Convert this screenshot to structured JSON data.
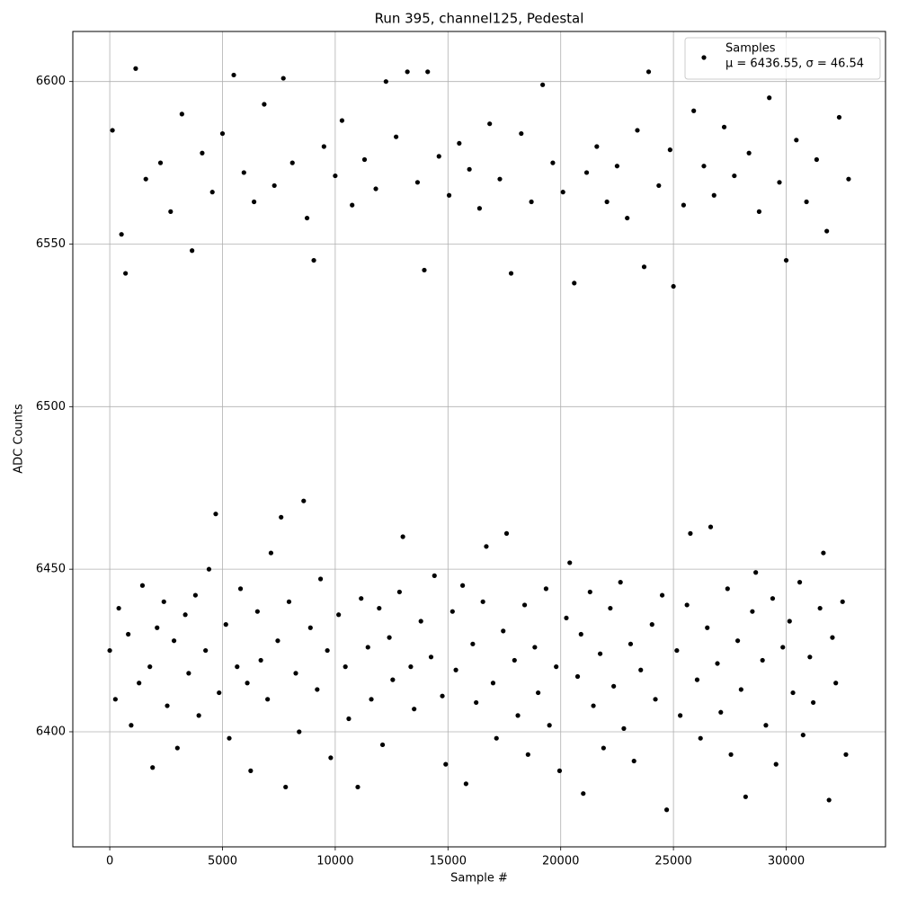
{
  "chart_data": {
    "type": "scatter",
    "title": "Run 395, channel125, Pedestal",
    "x_label": "Sample #",
    "y_label": "ADC Counts",
    "legend_note": "μ = 6436.55, σ = 46.54",
    "legend": "upper right",
    "grid": true,
    "xlim": [
      -1638,
      34405
    ],
    "ylim": [
      6364.6,
      6615.4
    ],
    "xticks": [
      0,
      5000,
      10000,
      15000,
      20000,
      25000,
      30000
    ],
    "yticks": [
      6400,
      6450,
      6500,
      6550,
      6600
    ],
    "x": [
      0,
      120,
      250,
      400,
      520,
      700,
      820,
      950,
      1150,
      1300,
      1450,
      1600,
      1780,
      1900,
      2100,
      2250,
      2400,
      2550,
      2700,
      2850,
      3000,
      3200,
      3350,
      3500,
      3650,
      3800,
      3950,
      4100,
      4250,
      4400,
      4550,
      4700,
      4850,
      5000,
      5150,
      5300,
      5500,
      5650,
      5800,
      5950,
      6100,
      6250,
      6400,
      6550,
      6700,
      6850,
      7000,
      7150,
      7300,
      7450,
      7600,
      7700,
      7800,
      7950,
      8100,
      8250,
      8400,
      8600,
      8750,
      8900,
      9050,
      9200,
      9350,
      9500,
      9650,
      9800,
      10000,
      10150,
      10300,
      10450,
      10600,
      10750,
      11000,
      11150,
      11300,
      11450,
      11600,
      11800,
      11950,
      12100,
      12250,
      12400,
      12550,
      12700,
      12850,
      13000,
      13200,
      13350,
      13500,
      13650,
      13800,
      13950,
      14100,
      14250,
      14400,
      14600,
      14750,
      14900,
      15050,
      15200,
      15350,
      15500,
      15650,
      15800,
      15950,
      16100,
      16250,
      16400,
      16550,
      16700,
      16850,
      17000,
      17150,
      17300,
      17450,
      17600,
      17800,
      17950,
      18100,
      18250,
      18400,
      18550,
      18700,
      18850,
      19000,
      19200,
      19350,
      19500,
      19650,
      19800,
      19950,
      20100,
      20250,
      20400,
      20600,
      20750,
      20900,
      21000,
      21150,
      21300,
      21450,
      21600,
      21750,
      21900,
      22050,
      22200,
      22350,
      22500,
      22650,
      22800,
      22950,
      23100,
      23250,
      23400,
      23550,
      23700,
      23900,
      24050,
      24200,
      24350,
      24500,
      24700,
      24850,
      25000,
      25150,
      25300,
      25450,
      25600,
      25750,
      25900,
      26050,
      26200,
      26350,
      26500,
      26650,
      26800,
      26950,
      27100,
      27250,
      27400,
      27550,
      27700,
      27850,
      28000,
      28200,
      28350,
      28500,
      28650,
      28800,
      28950,
      29100,
      29250,
      29400,
      29550,
      29700,
      29850,
      30000,
      30150,
      30300,
      30450,
      30600,
      30750,
      30900,
      31050,
      31200,
      31350,
      31500,
      31650,
      31800,
      31900,
      32050,
      32200,
      32350,
      32500,
      32650,
      32767
    ],
    "series": [
      {
        "name": "Samples",
        "color": "#000000",
        "values": [
          6425,
          6585,
          6410,
          6438,
          6553,
          6541,
          6430,
          6402,
          6604,
          6415,
          6445,
          6570,
          6420,
          6389,
          6432,
          6575,
          6440,
          6408,
          6560,
          6428,
          6395,
          6590,
          6436,
          6418,
          6548,
          6442,
          6405,
          6578,
          6425,
          6450,
          6566,
          6467,
          6412,
          6584,
          6433,
          6398,
          6602,
          6420,
          6444,
          6572,
          6415,
          6388,
          6563,
          6437,
          6422,
          6593,
          6410,
          6455,
          6568,
          6428,
          6466,
          6601,
          6383,
          6440,
          6575,
          6418,
          6400,
          6471,
          6558,
          6432,
          6545,
          6413,
          6447,
          6580,
          6425,
          6392,
          6571,
          6436,
          6588,
          6420,
          6404,
          6562,
          6383,
          6441,
          6576,
          6426,
          6410,
          6567,
          6438,
          6396,
          6600,
          6429,
          6416,
          6583,
          6443,
          6460,
          6603,
          6420,
          6407,
          6569,
          6434,
          6542,
          6603,
          6423,
          6448,
          6577,
          6411,
          6390,
          6565,
          6437,
          6419,
          6581,
          6445,
          6384,
          6573,
          6427,
          6409,
          6561,
          6440,
          6457,
          6587,
          6415,
          6398,
          6570,
          6431,
          6461,
          6541,
          6422,
          6405,
          6584,
          6439,
          6393,
          6563,
          6426,
          6412,
          6599,
          6444,
          6402,
          6575,
          6420,
          6388,
          6566,
          6435,
          6452,
          6538,
          6417,
          6430,
          6381,
          6572,
          6443,
          6408,
          6580,
          6424,
          6395,
          6563,
          6438,
          6414,
          6574,
          6446,
          6401,
          6558,
          6427,
          6391,
          6585,
          6419,
          6543,
          6603,
          6433,
          6410,
          6568,
          6442,
          6376,
          6579,
          6537,
          6425,
          6405,
          6562,
          6439,
          6461,
          6591,
          6416,
          6398,
          6574,
          6432,
          6463,
          6565,
          6421,
          6406,
          6586,
          6444,
          6393,
          6571,
          6428,
          6413,
          6380,
          6578,
          6437,
          6449,
          6560,
          6422,
          6402,
          6595,
          6441,
          6390,
          6569,
          6426,
          6545,
          6434,
          6412,
          6582,
          6446,
          6399,
          6563,
          6423,
          6409,
          6576,
          6438,
          6455,
          6554,
          6379,
          6429,
          6415,
          6589,
          6440,
          6393,
          6570
        ]
      }
    ]
  }
}
